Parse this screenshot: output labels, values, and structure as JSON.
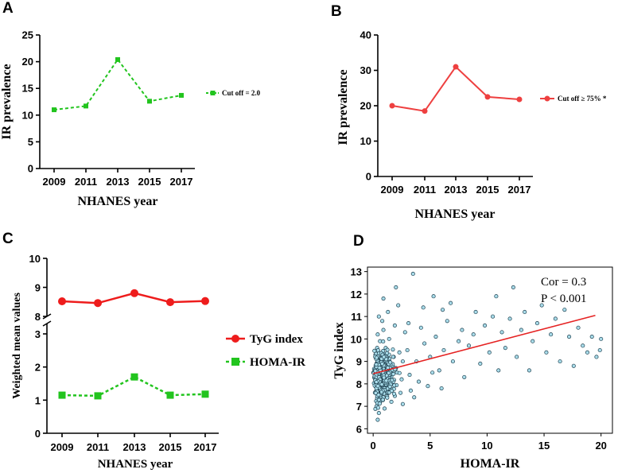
{
  "chart_data": [
    {
      "panel": "A",
      "type": "line",
      "categories": [
        "2009",
        "2011",
        "2013",
        "2015",
        "2017"
      ],
      "series": [
        {
          "name": "Cut off = 2.0",
          "values": [
            11.0,
            11.7,
            20.4,
            12.6,
            13.7
          ],
          "color": "#22c41e",
          "style": "dashed",
          "marker": "square"
        }
      ],
      "ylabel": "IR prevalence",
      "xlabel": "NHANES year",
      "ylim": [
        0,
        25
      ],
      "yticks": [
        "0",
        "5",
        "10",
        "15",
        "20",
        "25"
      ]
    },
    {
      "panel": "B",
      "type": "line",
      "categories": [
        "2009",
        "2011",
        "2013",
        "2015",
        "2017"
      ],
      "series": [
        {
          "name": "Cut off ≥ 75% *",
          "values": [
            20.0,
            18.5,
            31.0,
            22.5,
            21.8
          ],
          "color": "#ee4040",
          "style": "solid",
          "marker": "circle"
        }
      ],
      "ylabel": "IR prevalence",
      "xlabel": "NHANES year",
      "ylim": [
        0,
        40
      ],
      "yticks": [
        "0",
        "10",
        "20",
        "30",
        "40"
      ]
    },
    {
      "panel": "C",
      "type": "line",
      "categories": [
        "2009",
        "2011",
        "2013",
        "2015",
        "2017"
      ],
      "series": [
        {
          "name": "TyG index",
          "values": [
            8.52,
            8.46,
            8.8,
            8.49,
            8.53
          ],
          "color": "#ee1c1c",
          "style": "solid",
          "marker": "circle"
        },
        {
          "name": "HOMA-IR",
          "values": [
            1.15,
            1.13,
            1.7,
            1.15,
            1.18
          ],
          "color": "#22c41e",
          "style": "dashed",
          "marker": "square"
        }
      ],
      "ylabel": "Weighted mean values",
      "xlabel": "NHANES year",
      "axis_break": true,
      "ylim_lower": [
        0,
        3
      ],
      "ylim_upper": [
        8,
        10
      ],
      "yticks_lower": [
        "0",
        "1",
        "2",
        "3"
      ],
      "yticks_upper": [
        "8",
        "9",
        "10"
      ]
    },
    {
      "panel": "D",
      "type": "scatter",
      "xlabel": "HOMA-IR",
      "ylabel": "TyG index",
      "xlim": [
        -0.5,
        21
      ],
      "ylim": [
        5.8,
        13.2
      ],
      "xticks": [
        "0",
        "5",
        "10",
        "15",
        "20"
      ],
      "yticks": [
        "6",
        "7",
        "8",
        "9",
        "10",
        "11",
        "12",
        "13"
      ],
      "point_color": "#a9dcea",
      "point_edge": "#1d3f4e",
      "fit_line": {
        "x": [
          0,
          19.5
        ],
        "y": [
          8.45,
          11.05
        ],
        "color": "#e52222"
      },
      "annotations": [
        "Cor = 0.3",
        "P < 0.001"
      ],
      "points": [
        [
          0.3,
          8.2
        ],
        [
          0.5,
          8.4
        ],
        [
          0.6,
          8.0
        ],
        [
          0.8,
          8.6
        ],
        [
          0.4,
          7.9
        ],
        [
          1.0,
          8.3
        ],
        [
          1.2,
          8.8
        ],
        [
          0.7,
          9.1
        ],
        [
          0.2,
          7.6
        ],
        [
          0.9,
          7.4
        ],
        [
          1.5,
          8.9
        ],
        [
          1.8,
          9.2
        ],
        [
          2.0,
          8.7
        ],
        [
          2.3,
          9.4
        ],
        [
          1.1,
          9.6
        ],
        [
          0.6,
          9.9
        ],
        [
          0.4,
          10.2
        ],
        [
          1.4,
          10.0
        ],
        [
          2.6,
          9.0
        ],
        [
          3.0,
          9.5
        ],
        [
          3.2,
          8.4
        ],
        [
          2.8,
          10.3
        ],
        [
          1.9,
          10.6
        ],
        [
          0.8,
          10.8
        ],
        [
          0.5,
          11.0
        ],
        [
          1.3,
          11.2
        ],
        [
          2.2,
          11.5
        ],
        [
          0.9,
          11.8
        ],
        [
          2.0,
          12.3
        ],
        [
          3.5,
          12.9
        ],
        [
          1.6,
          7.2
        ],
        [
          0.3,
          7.0
        ],
        [
          0.5,
          6.7
        ],
        [
          0.4,
          6.4
        ],
        [
          1.0,
          6.9
        ],
        [
          2.4,
          7.6
        ],
        [
          3.3,
          7.7
        ],
        [
          4.0,
          8.1
        ],
        [
          3.8,
          9.0
        ],
        [
          4.5,
          9.8
        ],
        [
          4.2,
          10.5
        ],
        [
          5.0,
          9.2
        ],
        [
          5.5,
          10.1
        ],
        [
          5.8,
          8.6
        ],
        [
          6.2,
          9.5
        ],
        [
          6.5,
          10.8
        ],
        [
          6.8,
          11.6
        ],
        [
          7.0,
          9.0
        ],
        [
          7.5,
          9.9
        ],
        [
          7.8,
          10.4
        ],
        [
          8.0,
          8.3
        ],
        [
          8.4,
          9.7
        ],
        [
          8.8,
          10.2
        ],
        [
          9.0,
          11.2
        ],
        [
          9.4,
          8.9
        ],
        [
          9.8,
          10.6
        ],
        [
          10.2,
          9.4
        ],
        [
          10.5,
          11.0
        ],
        [
          10.8,
          11.9
        ],
        [
          11.0,
          8.6
        ],
        [
          11.3,
          10.3
        ],
        [
          11.6,
          9.6
        ],
        [
          12.0,
          10.9
        ],
        [
          12.3,
          12.3
        ],
        [
          12.6,
          9.2
        ],
        [
          13.0,
          10.4
        ],
        [
          13.3,
          11.2
        ],
        [
          13.7,
          8.6
        ],
        [
          14.0,
          9.9
        ],
        [
          14.4,
          10.7
        ],
        [
          14.8,
          11.5
        ],
        [
          15.2,
          9.4
        ],
        [
          15.6,
          10.2
        ],
        [
          16.0,
          10.9
        ],
        [
          16.4,
          9.0
        ],
        [
          16.8,
          11.3
        ],
        [
          17.2,
          10.1
        ],
        [
          17.6,
          8.8
        ],
        [
          18.0,
          10.5
        ],
        [
          18.4,
          9.7
        ],
        [
          18.8,
          9.4
        ],
        [
          19.2,
          10.1
        ],
        [
          19.6,
          9.2
        ],
        [
          19.9,
          9.5
        ],
        [
          20.0,
          10.0
        ],
        [
          2.6,
          7.1
        ],
        [
          3.6,
          7.4
        ],
        [
          4.8,
          7.9
        ],
        [
          5.2,
          8.5
        ],
        [
          6.0,
          7.8
        ],
        [
          1.7,
          8.1
        ],
        [
          2.1,
          8.5
        ],
        [
          1.2,
          7.8
        ],
        [
          0.7,
          8.9
        ],
        [
          0.1,
          8.5
        ],
        [
          0.2,
          9.3
        ],
        [
          0.6,
          7.2
        ],
        [
          1.4,
          9.3
        ],
        [
          2.5,
          8.2
        ],
        [
          3.1,
          10.7
        ],
        [
          4.4,
          11.4
        ],
        [
          5.3,
          11.9
        ],
        [
          6.1,
          11.3
        ],
        [
          0.9,
          10.4
        ],
        [
          0.35,
          9.6
        ],
        [
          1.1,
          8.1
        ],
        [
          0.55,
          8.7
        ],
        [
          0.75,
          7.7
        ],
        [
          1.25,
          9.0
        ],
        [
          0.45,
          8.9
        ]
      ]
    }
  ],
  "panels": {
    "A": {
      "label": "A",
      "ylabel": "IR prevalence",
      "xlabel": "NHANES year",
      "legend": "Cut off = 2.0"
    },
    "B": {
      "label": "B",
      "ylabel": "IR prevalence",
      "xlabel": "NHANES year",
      "legend": "Cut off ≥ 75% *"
    },
    "C": {
      "label": "C",
      "ylabel": "Weighted mean values",
      "xlabel": "NHANES year",
      "legend1": "TyG index",
      "legend2": "HOMA-IR"
    },
    "D": {
      "label": "D",
      "ylabel": "TyG index",
      "xlabel": "HOMA-IR",
      "cor": "Cor = 0.3",
      "p": "P < 0.001"
    }
  }
}
